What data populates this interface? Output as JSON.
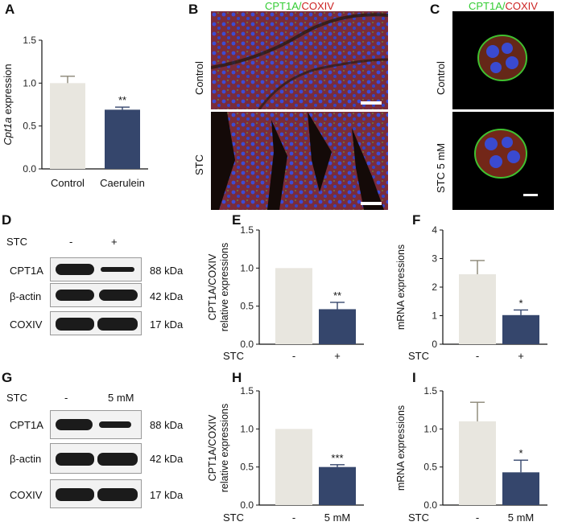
{
  "panels": {
    "A": "A",
    "B": "B",
    "C": "C",
    "D": "D",
    "E": "E",
    "F": "F",
    "G": "G",
    "H": "H",
    "I": "I"
  },
  "colors": {
    "control_bar": "#e8e6df",
    "treated_bar": "#35466c",
    "green": "#33cc33",
    "red": "#cc2222",
    "blue": "#3f4fd0"
  },
  "microscopy": {
    "stain_green": "CPT1A/",
    "stain_red": "COXIV",
    "row_control": "Control",
    "row_stc": "STC",
    "row_stc5": "STC 5 mM",
    "scale_bar": "50 μm"
  },
  "blots": {
    "D": {
      "stc_label": "STC",
      "lanes": [
        "-",
        "+"
      ],
      "rows": [
        {
          "name": "CPT1A",
          "size": "88 kDa",
          "band_levels": [
            0.85,
            0.45
          ]
        },
        {
          "name": "β-actin",
          "size": "42 kDa",
          "band_levels": [
            0.9,
            0.9
          ]
        },
        {
          "name": "COXIV",
          "size": "17 kDa",
          "band_levels": [
            0.95,
            0.95
          ]
        }
      ]
    },
    "G": {
      "stc_label": "STC",
      "lanes": [
        "-",
        "5 mM"
      ],
      "rows": [
        {
          "name": "CPT1A",
          "size": "88 kDa",
          "band_levels": [
            0.85,
            0.5
          ]
        },
        {
          "name": "β-actin",
          "size": "42 kDa",
          "band_levels": [
            0.95,
            0.95
          ]
        },
        {
          "name": "COXIV",
          "size": "17 kDa",
          "band_levels": [
            0.95,
            0.95
          ]
        }
      ]
    }
  },
  "chart_data": [
    {
      "id": "A",
      "type": "bar",
      "categories": [
        "Control",
        "Caerulein"
      ],
      "values": [
        1.0,
        0.69
      ],
      "errors": [
        0.08,
        0.03
      ],
      "significance": [
        "",
        "**"
      ],
      "ylabel_italic": "Cpt1a",
      "ylabel_rest": " expression",
      "ylim": [
        0,
        1.5
      ],
      "yticks": [
        "0.0",
        "0.5",
        "1.0",
        "1.5"
      ],
      "xlabel": "",
      "treatment_label": ""
    },
    {
      "id": "E",
      "type": "bar",
      "categories": [
        "-",
        "+"
      ],
      "values": [
        1.0,
        0.46
      ],
      "errors": [
        0,
        0.09
      ],
      "significance": [
        "",
        "**"
      ],
      "ylabel_lines": [
        "CPT1A/COXIV",
        "relative expressions"
      ],
      "ylim": [
        0,
        1.5
      ],
      "yticks": [
        "0.0",
        "0.5",
        "1.0",
        "1.5"
      ],
      "treatment_label": "STC"
    },
    {
      "id": "F",
      "type": "bar",
      "categories": [
        "-",
        "+"
      ],
      "values": [
        2.45,
        1.02
      ],
      "errors": [
        0.48,
        0.18
      ],
      "significance": [
        "",
        "*"
      ],
      "ylabel_lines": [
        "mRNA expressions"
      ],
      "ylim": [
        0,
        4
      ],
      "yticks": [
        "0",
        "1",
        "2",
        "3",
        "4"
      ],
      "treatment_label": "STC"
    },
    {
      "id": "H",
      "type": "bar",
      "categories": [
        "-",
        "5 mM"
      ],
      "values": [
        1.0,
        0.5
      ],
      "errors": [
        0,
        0.03
      ],
      "significance": [
        "",
        "***"
      ],
      "ylabel_lines": [
        "CPT1A/COXIV",
        "relative expressions"
      ],
      "ylim": [
        0,
        1.5
      ],
      "yticks": [
        "0.0",
        "0.5",
        "1.0",
        "1.5"
      ],
      "treatment_label": "STC"
    },
    {
      "id": "I",
      "type": "bar",
      "categories": [
        "-",
        "5 mM"
      ],
      "values": [
        1.1,
        0.43
      ],
      "errors": [
        0.25,
        0.16
      ],
      "significance": [
        "",
        "*"
      ],
      "ylabel_lines": [
        "mRNA expressions"
      ],
      "ylim": [
        0,
        1.5
      ],
      "yticks": [
        "0.0",
        "0.5",
        "1.0",
        "1.5"
      ],
      "treatment_label": "STC"
    }
  ]
}
